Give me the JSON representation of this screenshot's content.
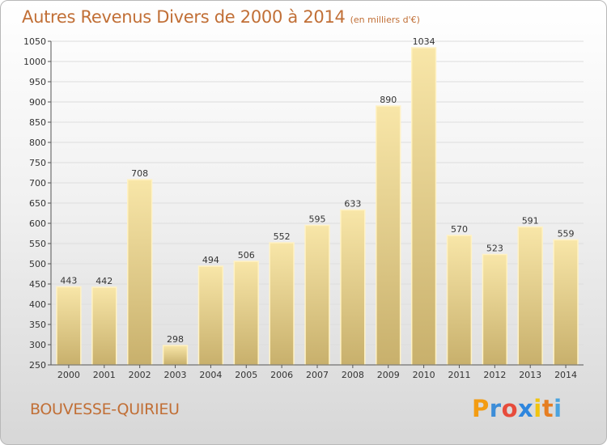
{
  "title": {
    "main": "Autres Revenus Divers de 2000 à 2014",
    "sub": "(en milliers d'€)"
  },
  "location": "BOUVESSE-QUIRIEU",
  "logo": {
    "text": "Proxiti",
    "letter_colors": [
      "#f39c12",
      "#3c8dd8",
      "#e74c3c",
      "#2e86de",
      "#f1c40f",
      "#e67e22",
      "#4aa3df"
    ]
  },
  "colors": {
    "title": "#c16f36",
    "bar_light": "#f8e6a8",
    "bar_dark": "#c8b06c",
    "bar_border": "#fff2c4"
  },
  "chart_data": {
    "type": "bar",
    "categories": [
      "2000",
      "2001",
      "2002",
      "2003",
      "2004",
      "2005",
      "2006",
      "2007",
      "2008",
      "2009",
      "2010",
      "2011",
      "2012",
      "2013",
      "2014"
    ],
    "values": [
      443,
      442,
      708,
      298,
      494,
      506,
      552,
      595,
      633,
      890,
      1034,
      570,
      523,
      591,
      559
    ],
    "yticks": [
      250,
      300,
      350,
      400,
      450,
      500,
      550,
      600,
      650,
      700,
      750,
      800,
      850,
      900,
      950,
      1000,
      1050
    ],
    "ylim": [
      250,
      1050
    ],
    "grid": true,
    "xlabel": "",
    "ylabel": ""
  }
}
